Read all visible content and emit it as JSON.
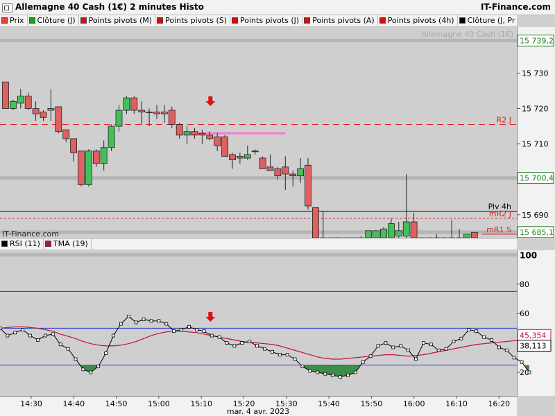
{
  "header": {
    "title": "Allemagne 40 Cash (1€) 2 minutes Histo",
    "brand": "IT-Finance.com",
    "instrument_faint": "Allemagne 40 Cash (1€)"
  },
  "legend": [
    {
      "label": "Prix",
      "color": "#e04040"
    },
    {
      "label": "Clôture (J)",
      "color": "#20a020"
    },
    {
      "label": "Points pivots (M)",
      "color": "#d01010"
    },
    {
      "label": "Points pivots (S)",
      "color": "#d01010"
    },
    {
      "label": "Points pivots (J)",
      "color": "#d01010"
    },
    {
      "label": "Points pivots (A)",
      "color": "#d01010"
    },
    {
      "label": "Points pivots (4h)",
      "color": "#d01010"
    },
    {
      "label": "Clôture (J, Pr",
      "color": "#000000"
    }
  ],
  "watermark": "IT-Finance.com",
  "rsi_legend": [
    {
      "label": "RSI (11)",
      "color": "#000000"
    },
    {
      "label": "TMA (19)",
      "color": "#c0103c"
    }
  ],
  "colors": {
    "up": "#44c05a",
    "down": "#e06060",
    "pivot_red": "#e02020",
    "pink": "#ff77c8",
    "rsi_fill": "#3e8e4a",
    "tma": "#c0103c",
    "rsi_band": "#2233cc"
  },
  "chart_data": [
    {
      "type": "candlestick",
      "title": "Allemagne 40 Cash (1€) 2 minutes Histo",
      "ylim": [
        15683.5,
        15743
      ],
      "yticks": [
        15690,
        15700,
        15710,
        15720,
        15730
      ],
      "ytick_labels": [
        "15 690",
        "15 700",
        "15 710",
        "15 720",
        "15 730"
      ],
      "x_ticks": [
        "14:30",
        "14:40",
        "14:50",
        "15:00",
        "15:10",
        "15:20",
        "15:30",
        "15:40",
        "15:50",
        "16:00",
        "16:10",
        "16:20"
      ],
      "x_date": "mar. 4 avr. 2023",
      "candles": [
        {
          "o": 15727.5,
          "h": 15727.5,
          "l": 15720,
          "c": 15720
        },
        {
          "o": 15720,
          "h": 15722.5,
          "l": 15719.5,
          "c": 15722
        },
        {
          "o": 15721.5,
          "h": 15725.5,
          "l": 15720,
          "c": 15723.5
        },
        {
          "o": 15723.5,
          "h": 15724.5,
          "l": 15719.5,
          "c": 15720
        },
        {
          "o": 15720,
          "h": 15722,
          "l": 15716.5,
          "c": 15718.5
        },
        {
          "o": 15719,
          "h": 15719.5,
          "l": 15716.5,
          "c": 15717.5
        },
        {
          "o": 15719.5,
          "h": 15725.5,
          "l": 15716.5,
          "c": 15720
        },
        {
          "o": 15720.5,
          "h": 15720.5,
          "l": 15713,
          "c": 15713.5
        },
        {
          "o": 15714,
          "h": 15714,
          "l": 15710.5,
          "c": 15711.5
        },
        {
          "o": 15711.5,
          "h": 15711.5,
          "l": 15705,
          "c": 15707.5
        },
        {
          "o": 15708,
          "h": 15708,
          "l": 15698,
          "c": 15698.5
        },
        {
          "o": 15698.5,
          "h": 15708.5,
          "l": 15698,
          "c": 15708
        },
        {
          "o": 15708,
          "h": 15708.5,
          "l": 15703.5,
          "c": 15704.5
        },
        {
          "o": 15704.5,
          "h": 15711,
          "l": 15702.5,
          "c": 15709
        },
        {
          "o": 15709,
          "h": 15715.5,
          "l": 15708,
          "c": 15715
        },
        {
          "o": 15715,
          "h": 15721,
          "l": 15713.5,
          "c": 15719.5
        },
        {
          "o": 15719.5,
          "h": 15723.5,
          "l": 15718.5,
          "c": 15723
        },
        {
          "o": 15723,
          "h": 15723.5,
          "l": 15718.5,
          "c": 15719.5
        },
        {
          "o": 15719.5,
          "h": 15722,
          "l": 15715.5,
          "c": 15719
        },
        {
          "o": 15719,
          "h": 15720,
          "l": 15715,
          "c": 15719
        },
        {
          "o": 15719,
          "h": 15721,
          "l": 15717,
          "c": 15718.5
        },
        {
          "o": 15719,
          "h": 15721,
          "l": 15716,
          "c": 15718.5
        },
        {
          "o": 15719.5,
          "h": 15720.5,
          "l": 15714.5,
          "c": 15715.5
        },
        {
          "o": 15715.5,
          "h": 15716,
          "l": 15711.5,
          "c": 15712.5
        },
        {
          "o": 15712.5,
          "h": 15715,
          "l": 15710,
          "c": 15713.5
        },
        {
          "o": 15713.5,
          "h": 15714.5,
          "l": 15711.5,
          "c": 15712.5
        },
        {
          "o": 15713,
          "h": 15714,
          "l": 15710,
          "c": 15712.5
        },
        {
          "o": 15712.5,
          "h": 15713.5,
          "l": 15711,
          "c": 15711.5
        },
        {
          "o": 15712,
          "h": 15713,
          "l": 15708,
          "c": 15709.5
        },
        {
          "o": 15712,
          "h": 15712.5,
          "l": 15706.5,
          "c": 15706.5
        },
        {
          "o": 15707,
          "h": 15707.5,
          "l": 15703,
          "c": 15705.5
        },
        {
          "o": 15706,
          "h": 15707.5,
          "l": 15704.5,
          "c": 15706.5
        },
        {
          "o": 15706,
          "h": 15709.5,
          "l": 15705.5,
          "c": 15707
        },
        {
          "o": 15708,
          "h": 15708.5,
          "l": 15707,
          "c": 15708
        },
        {
          "o": 15706,
          "h": 15706.5,
          "l": 15703,
          "c": 15703
        },
        {
          "o": 15703.5,
          "h": 15707,
          "l": 15702.5,
          "c": 15702.5
        },
        {
          "o": 15703,
          "h": 15703.5,
          "l": 15700,
          "c": 15701
        },
        {
          "o": 15703.5,
          "h": 15706.5,
          "l": 15697,
          "c": 15701.5
        },
        {
          "o": 15701.5,
          "h": 15702.5,
          "l": 15698,
          "c": 15701
        },
        {
          "o": 15701,
          "h": 15706,
          "l": 15699,
          "c": 15703
        },
        {
          "o": 15704,
          "h": 15706,
          "l": 15691.5,
          "c": 15692.5
        },
        {
          "o": 15692,
          "h": 15692,
          "l": 15683.5,
          "c": 15683.5
        },
        {
          "o": 15683.5,
          "h": 15691,
          "l": 15683.5,
          "c": 15683.5
        },
        {
          "o": 15683.5,
          "h": 15683.5,
          "l": 15683.5,
          "c": 15683.5
        },
        {
          "o": 15683.5,
          "h": 15683.5,
          "l": 15683.5,
          "c": 15683.5
        },
        {
          "o": 15683.5,
          "h": 15683.5,
          "l": 15683.5,
          "c": 15683.5
        },
        {
          "o": 15683.5,
          "h": 15683.5,
          "l": 15683.5,
          "c": 15683.5
        },
        {
          "o": 15683.5,
          "h": 15684,
          "l": 15683.5,
          "c": 15683.5
        },
        {
          "o": 15683.5,
          "h": 15685.5,
          "l": 15683.5,
          "c": 15685.5
        },
        {
          "o": 15683.5,
          "h": 15685.5,
          "l": 15683.5,
          "c": 15685.5
        },
        {
          "o": 15683.5,
          "h": 15686.5,
          "l": 15683.5,
          "c": 15686
        },
        {
          "o": 15683.5,
          "h": 15689,
          "l": 15683.5,
          "c": 15687.5
        },
        {
          "o": 15684,
          "h": 15688,
          "l": 15683.5,
          "c": 15685.5
        },
        {
          "o": 15684,
          "h": 15701.5,
          "l": 15683.5,
          "c": 15688
        },
        {
          "o": 15688,
          "h": 15690.5,
          "l": 15683.5,
          "c": 15683.5
        },
        {
          "o": 15683.5,
          "h": 15683.5,
          "l": 15683.5,
          "c": 15683.5
        },
        {
          "o": 15683.5,
          "h": 15683.5,
          "l": 15683.5,
          "c": 15683.5
        },
        {
          "o": 15683.5,
          "h": 15684.5,
          "l": 15683.5,
          "c": 15683.5
        },
        {
          "o": 15683.5,
          "h": 15683.5,
          "l": 15683.5,
          "c": 15683.5
        },
        {
          "o": 15683.5,
          "h": 15688.5,
          "l": 15683.5,
          "c": 15683.5
        },
        {
          "o": 15683.5,
          "h": 15686,
          "l": 15683.5,
          "c": 15683.5
        },
        {
          "o": 15683.5,
          "h": 15684.5,
          "l": 15683.5,
          "c": 15684.5
        },
        {
          "o": 15685,
          "h": 15685,
          "l": 15683.5,
          "c": 15683.5
        }
      ],
      "levels": [
        {
          "name": "R2 J",
          "value": 15715.5,
          "style": "dashed",
          "color": "#e02020"
        },
        {
          "name": "Piv 4h",
          "value": 15691,
          "style": "solid",
          "color": "#000000"
        },
        {
          "name": "mR2 J",
          "value": 15689,
          "style": "dotted",
          "color": "#e02020"
        },
        {
          "name": "mR1 S",
          "value": 15684.5,
          "style": "solid",
          "color": "#e02020"
        }
      ],
      "marker_value": 15713,
      "axis_boxes": [
        {
          "label": "15 739,2",
          "value": 15739.2,
          "color": "#1a7d1a"
        },
        {
          "label": "15 700,4",
          "value": 15700.4,
          "color": "#1a7d1a"
        },
        {
          "label": "15 685,1",
          "value": 15685.1,
          "color": "#1a7d1a"
        }
      ]
    },
    {
      "type": "line",
      "title": "RSI (11)",
      "ylim": [
        4,
        103
      ],
      "yticks": [
        20,
        40,
        60,
        80
      ],
      "ytick_labels": [
        "20",
        "40",
        "60",
        "80"
      ],
      "top_label": "100",
      "bands": [
        75,
        50,
        25
      ],
      "series": [
        {
          "name": "RSI (11)",
          "values": [
            50,
            45,
            47,
            49,
            45,
            42,
            45,
            46,
            39,
            36,
            29,
            22,
            20,
            24,
            33,
            45,
            53,
            58,
            54,
            56,
            55,
            55,
            53,
            48,
            49,
            51,
            49,
            48,
            45,
            44,
            40,
            38,
            40,
            41,
            38,
            36,
            34,
            32,
            32,
            29,
            24,
            21,
            20,
            19,
            18,
            17,
            18,
            20,
            27,
            31,
            38,
            40,
            37,
            38,
            35,
            29,
            40,
            39,
            35,
            36,
            41,
            43,
            49,
            48,
            44,
            42,
            37,
            35,
            30,
            27,
            20
          ]
        },
        {
          "name": "TMA (19)",
          "values": [
            50,
            50.5,
            51,
            51,
            50.5,
            50,
            49,
            48,
            46,
            44.5,
            43,
            41,
            39.5,
            38.5,
            38,
            38,
            38.5,
            39.5,
            41,
            43,
            45,
            46.5,
            47.5,
            48,
            48,
            47.5,
            47,
            46,
            45,
            44,
            43,
            42,
            41,
            40.5,
            40,
            39.5,
            39,
            38,
            36.5,
            35,
            33.5,
            32,
            30.5,
            29.5,
            29,
            29,
            29.5,
            30,
            30.5,
            31,
            31.5,
            32,
            32,
            31.5,
            31,
            31.5,
            32,
            33,
            34,
            35,
            36,
            37,
            38,
            39,
            39.5,
            40,
            40.5,
            41,
            41.5,
            42,
            42.5
          ]
        }
      ],
      "axis_boxes": [
        {
          "label": "45,354",
          "value": 45.354,
          "color": "#c0103c"
        },
        {
          "label": "38,113",
          "value": 38.113,
          "color": "#000000"
        }
      ]
    }
  ]
}
